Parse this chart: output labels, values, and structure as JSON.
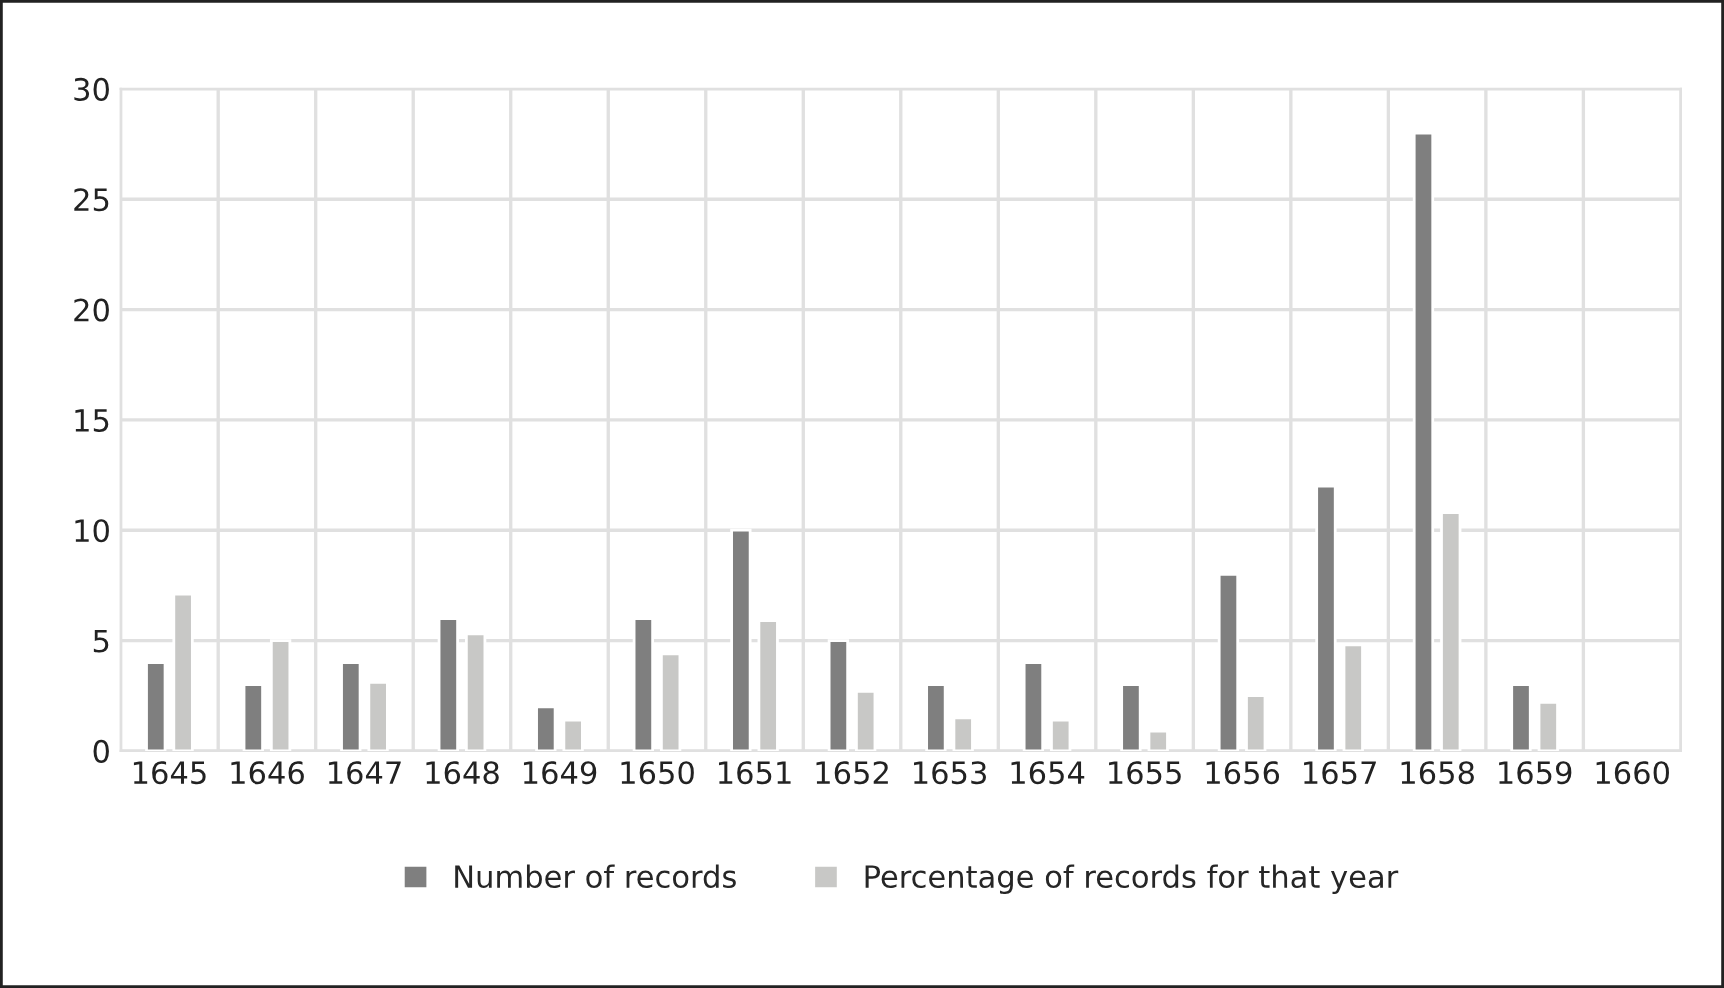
{
  "chart_data": {
    "type": "bar",
    "categories": [
      "1645",
      "1646",
      "1647",
      "1648",
      "1649",
      "1650",
      "1651",
      "1652",
      "1653",
      "1654",
      "1655",
      "1656",
      "1657",
      "1658",
      "1659",
      "1660"
    ],
    "series": [
      {
        "name": "Number of records",
        "color": "#7f7f7f",
        "values": [
          4,
          3,
          4,
          6,
          2,
          6,
          10,
          5,
          3,
          4,
          3,
          8,
          12,
          28,
          3,
          null
        ]
      },
      {
        "name": "Percentage of records for that year",
        "color": "#c8c8c6",
        "values": [
          7.1,
          5.0,
          3.1,
          5.3,
          1.4,
          4.4,
          5.9,
          2.7,
          1.5,
          1.4,
          0.9,
          2.5,
          4.8,
          10.8,
          2.2,
          null
        ]
      }
    ],
    "ylim": [
      0,
      30
    ],
    "yticks": [
      0,
      5,
      10,
      15,
      20,
      25,
      30
    ],
    "grid": true,
    "legend": "bottom"
  }
}
